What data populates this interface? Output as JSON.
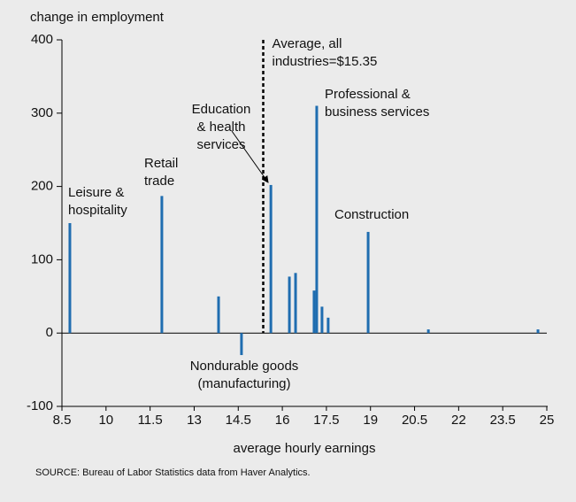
{
  "chart_data": {
    "type": "bar",
    "y_axis_label": "change in employment",
    "x_axis_label": "average hourly earnings",
    "source": "SOURCE: Bureau of Labor Statistics data from Haver Analytics.",
    "x": [
      8.77,
      11.9,
      13.83,
      14.61,
      15.61,
      16.24,
      16.45,
      17.08,
      17.17,
      17.35,
      17.56,
      18.92,
      20.97,
      24.7
    ],
    "values": [
      150,
      187,
      50,
      -30,
      202,
      77,
      82,
      58,
      310,
      36,
      21,
      138,
      5,
      5
    ],
    "color": "#1f6db0",
    "xlim": [
      8.5,
      25
    ],
    "xticks": [
      8.5,
      10,
      11.5,
      13,
      14.5,
      16,
      17.5,
      19,
      20.5,
      22,
      23.5,
      25
    ],
    "ylim": [
      -100,
      400
    ],
    "yticks": [
      -100,
      0,
      100,
      200,
      300,
      400
    ],
    "average_line": {
      "x": 15.35,
      "label": [
        "Average, all",
        "industries=$15.35"
      ]
    },
    "annotations": [
      {
        "text": [
          "Leisure &",
          "hospitality"
        ]
      },
      {
        "text": [
          "Retail",
          "trade"
        ]
      },
      {
        "text": [
          "Education",
          "& health",
          "services"
        ]
      },
      {
        "text": [
          "Professional &",
          "business services"
        ]
      },
      {
        "text": [
          "Construction"
        ]
      },
      {
        "text": [
          "Nondurable goods",
          "(manufacturing)"
        ]
      }
    ]
  }
}
